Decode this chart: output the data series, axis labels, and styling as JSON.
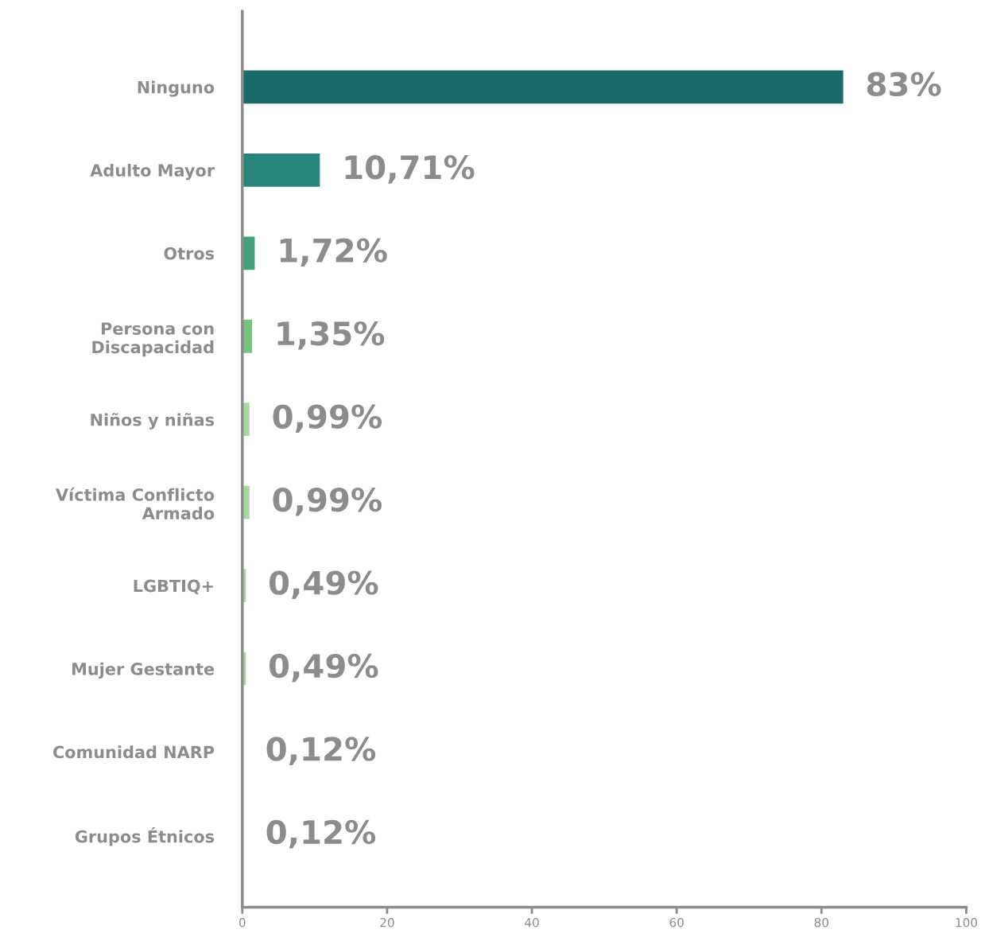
{
  "chart_data": {
    "type": "bar",
    "orientation": "horizontal",
    "categories": [
      "Ninguno",
      "Adulto Mayor",
      "Otros",
      "Persona con\nDiscapacidad",
      "Niños y niñas",
      "Víctima Conflicto\nArmado",
      "LGBTIQ+",
      "Mujer Gestante",
      "Comunidad NARP",
      "Grupos Étnicos"
    ],
    "values": [
      83,
      10.71,
      1.72,
      1.35,
      0.99,
      0.99,
      0.49,
      0.49,
      0.12,
      0.12
    ],
    "colors": [
      "#1a6a6a",
      "#27857b",
      "#45a07a",
      "#77c37a",
      "#acd7a0",
      "#acd7a0",
      "#acd7a0",
      "#acd7a0",
      "#acd7a0",
      "#acd7a0"
    ],
    "value_labels": [
      "83%",
      "10,71%",
      "1,72%",
      "1,35%",
      "0,99%",
      "0,99%",
      "0,49%",
      "0,49%",
      "0,12%",
      "0,12%"
    ],
    "xlim": [
      0,
      100
    ],
    "xticks": [
      0,
      20,
      40,
      60,
      80,
      100
    ],
    "grid": false,
    "legend": false
  }
}
